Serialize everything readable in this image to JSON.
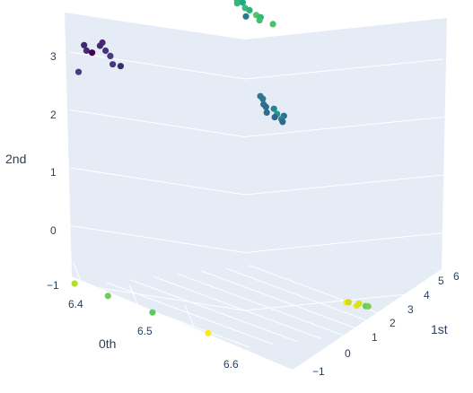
{
  "chart_data": {
    "type": "scatter3d",
    "axes": {
      "x": {
        "title": "0th",
        "ticks": [
          "6.4",
          "6.5",
          "6.6"
        ],
        "tick_values": [
          6.4,
          6.5,
          6.6
        ]
      },
      "y": {
        "title": "1st",
        "ticks": [
          "−1",
          "0",
          "1",
          "2",
          "3",
          "4",
          "5",
          "6"
        ],
        "tick_values": [
          -1,
          0,
          1,
          2,
          3,
          4,
          5,
          6
        ]
      },
      "z": {
        "title": "2nd",
        "ticks": [
          "−1",
          "0",
          "1",
          "2",
          "3"
        ],
        "tick_values": [
          -1,
          0,
          1,
          2,
          3
        ]
      }
    },
    "colorscale": "viridis",
    "background": "#e5ecf6",
    "points": [
      {
        "x": 6.39,
        "y": -0.7,
        "z": 3.1,
        "color": "#3e2870"
      },
      {
        "x": 6.39,
        "y": -0.6,
        "z": 3.0,
        "color": "#452a7a"
      },
      {
        "x": 6.4,
        "y": -0.6,
        "z": 3.0,
        "color": "#440154"
      },
      {
        "x": 6.41,
        "y": -0.5,
        "z": 3.15,
        "color": "#3b2a6e"
      },
      {
        "x": 6.41,
        "y": -0.4,
        "z": 3.2,
        "color": "#482576"
      },
      {
        "x": 6.42,
        "y": -0.5,
        "z": 3.1,
        "color": "#46337e"
      },
      {
        "x": 6.42,
        "y": -0.3,
        "z": 3.0,
        "color": "#473a80"
      },
      {
        "x": 6.42,
        "y": -0.2,
        "z": 2.85,
        "color": "#453781"
      },
      {
        "x": 6.43,
        "y": -0.1,
        "z": 2.85,
        "color": "#3b2a6e"
      },
      {
        "x": 6.38,
        "y": -0.7,
        "z": 2.6,
        "color": "#423f85"
      },
      {
        "x": 6.4,
        "y": 5.5,
        "z": 3.6,
        "color": "#2fb47c"
      },
      {
        "x": 6.4,
        "y": 5.5,
        "z": 3.55,
        "color": "#35b779"
      },
      {
        "x": 6.41,
        "y": 5.6,
        "z": 3.5,
        "color": "#3bbb75"
      },
      {
        "x": 6.41,
        "y": 5.5,
        "z": 3.6,
        "color": "#22a884"
      },
      {
        "x": 6.42,
        "y": 5.55,
        "z": 3.5,
        "color": "#2db27d"
      },
      {
        "x": 6.43,
        "y": 5.6,
        "z": 3.45,
        "color": "#52c569"
      },
      {
        "x": 6.44,
        "y": 5.55,
        "z": 3.45,
        "color": "#35b779"
      },
      {
        "x": 6.44,
        "y": 5.5,
        "z": 3.4,
        "color": "#42be71"
      },
      {
        "x": 6.42,
        "y": 5.4,
        "z": 3.4,
        "color": "#2a788e"
      },
      {
        "x": 6.46,
        "y": 5.6,
        "z": 3.4,
        "color": "#4ac16d"
      },
      {
        "x": 6.4,
        "y": 5.6,
        "z": 3.7,
        "color": "#7ad151"
      },
      {
        "x": 6.57,
        "y": 2.5,
        "z": 2.7,
        "color": "#2a788e"
      },
      {
        "x": 6.57,
        "y": 2.6,
        "z": 2.65,
        "color": "#29798e"
      },
      {
        "x": 6.58,
        "y": 2.4,
        "z": 2.6,
        "color": "#2c728e"
      },
      {
        "x": 6.58,
        "y": 2.5,
        "z": 2.55,
        "color": "#306a8e"
      },
      {
        "x": 6.59,
        "y": 2.6,
        "z": 2.55,
        "color": "#25848e"
      },
      {
        "x": 6.59,
        "y": 2.3,
        "z": 2.5,
        "color": "#2f6c8e"
      },
      {
        "x": 6.6,
        "y": 2.5,
        "z": 2.5,
        "color": "#1f9a8a"
      },
      {
        "x": 6.6,
        "y": 2.4,
        "z": 2.45,
        "color": "#31678e"
      },
      {
        "x": 6.61,
        "y": 2.55,
        "z": 2.5,
        "color": "#2d708e"
      },
      {
        "x": 6.61,
        "y": 2.45,
        "z": 2.45,
        "color": "#24868e"
      },
      {
        "x": 6.61,
        "y": 2.5,
        "z": 2.4,
        "color": "#31688e"
      },
      {
        "x": 6.39,
        "y": -1.1,
        "z": -1.0,
        "color": "#b5de2b"
      },
      {
        "x": 6.45,
        "y": -1.1,
        "z": -1.0,
        "color": "#6ece58"
      },
      {
        "x": 6.53,
        "y": -1.1,
        "z": -1.0,
        "color": "#5ec962"
      },
      {
        "x": 6.63,
        "y": -1.1,
        "z": -1.0,
        "color": "#fde725"
      },
      {
        "x": 6.78,
        "y": 1.2,
        "z": -0.05,
        "color": "#fde725"
      },
      {
        "x": 6.78,
        "y": 1.3,
        "z": -0.05,
        "color": "#c8e020"
      },
      {
        "x": 6.79,
        "y": 1.4,
        "z": -0.08,
        "color": "#e5e419"
      },
      {
        "x": 6.79,
        "y": 1.5,
        "z": -0.05,
        "color": "#d8e219"
      },
      {
        "x": 6.8,
        "y": 1.55,
        "z": -0.06,
        "color": "#5ec962"
      },
      {
        "x": 6.8,
        "y": 1.65,
        "z": -0.07,
        "color": "#7ad151"
      }
    ]
  }
}
